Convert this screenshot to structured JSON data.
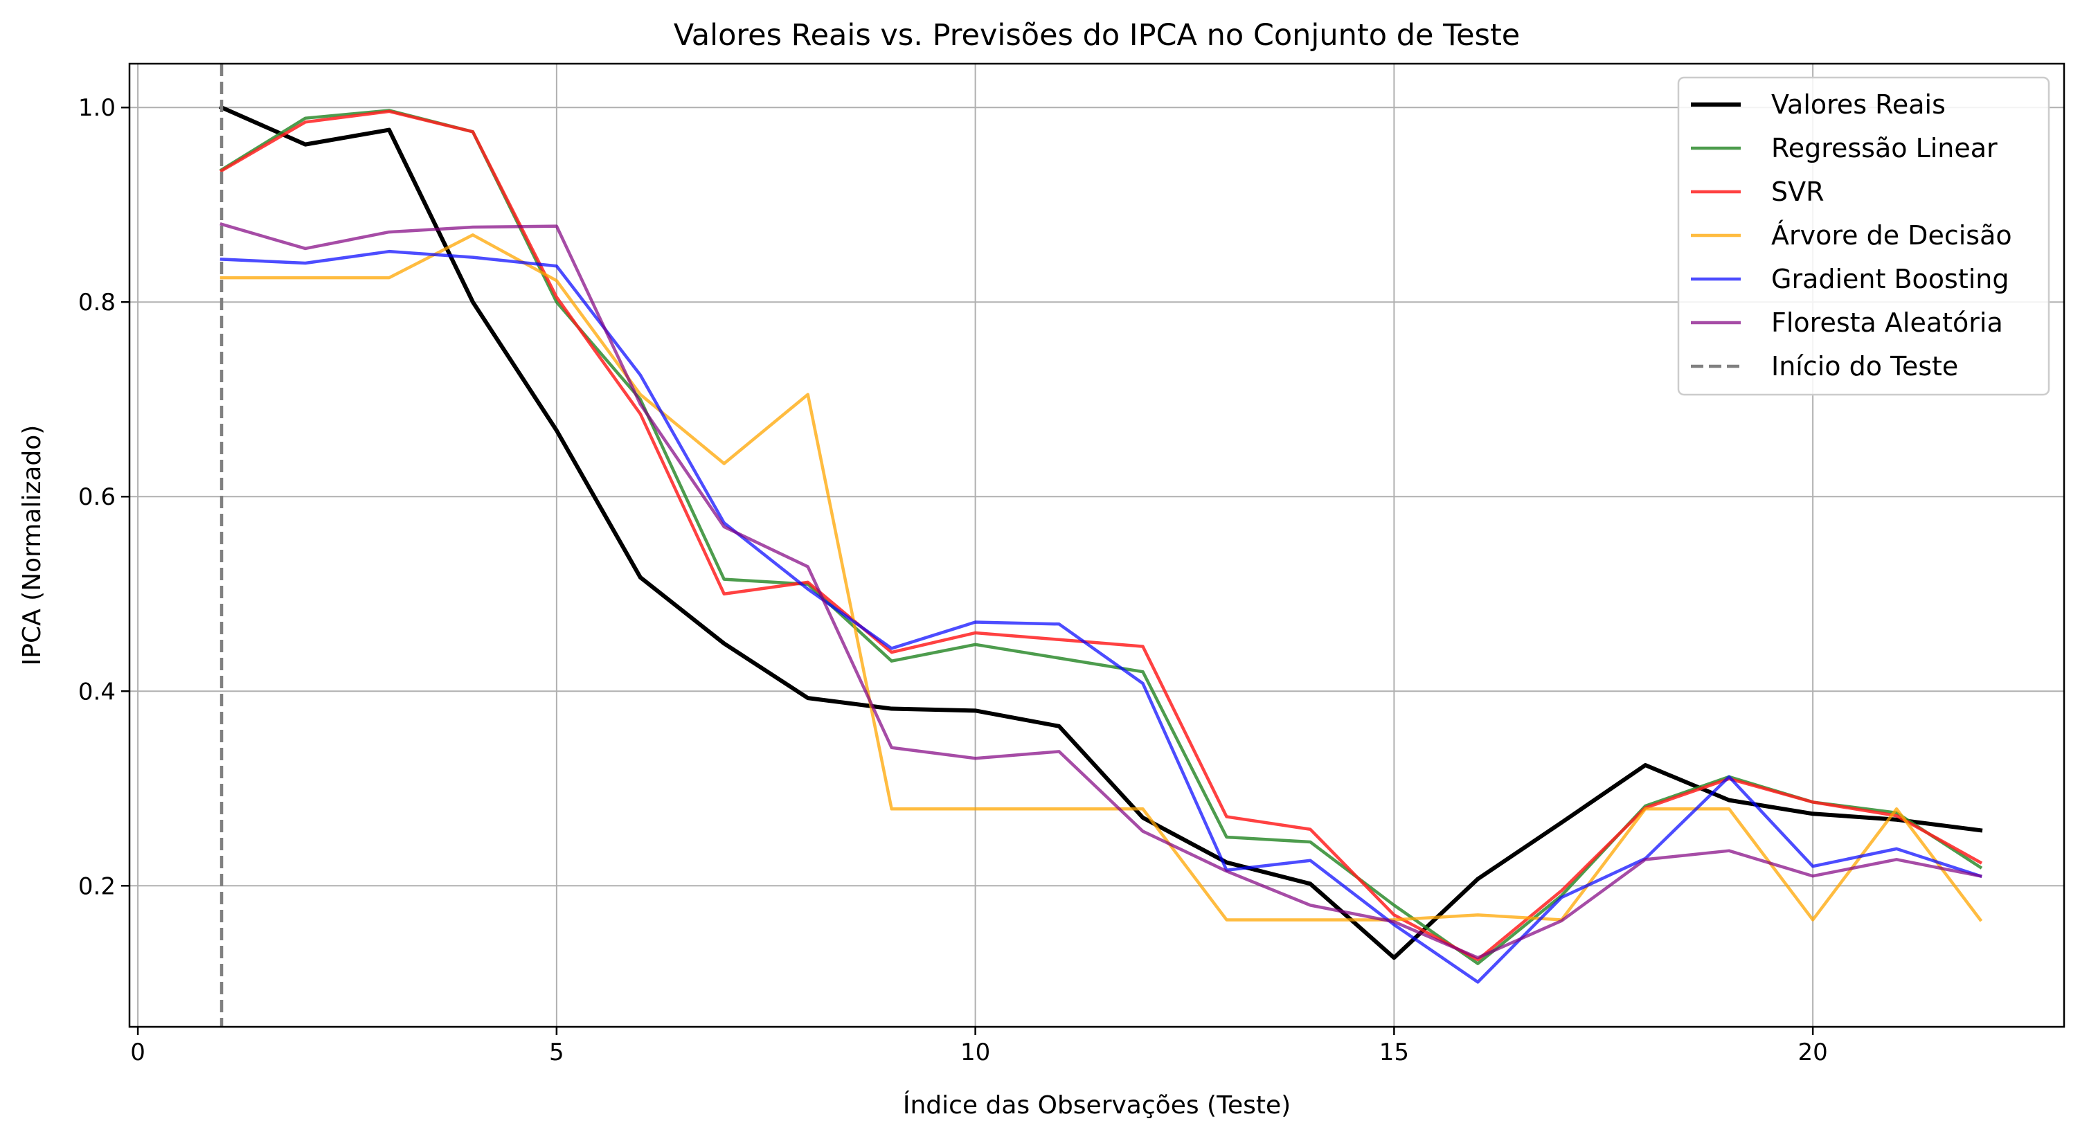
{
  "chart_data": {
    "type": "line",
    "title": "Valores Reais vs. Previsões do IPCA no Conjunto de Teste",
    "xlabel": "Índice das Observações (Teste)",
    "ylabel": "IPCA (Normalizado)",
    "xlim": [
      -0.1,
      23.0
    ],
    "ylim": [
      0.055,
      1.045
    ],
    "xticks": [
      0,
      5,
      10,
      15,
      20
    ],
    "yticks": [
      0.2,
      0.4,
      0.6,
      0.8,
      1.0
    ],
    "grid": true,
    "legend_position": "top-right",
    "x": [
      1,
      2,
      3,
      4,
      5,
      6,
      7,
      8,
      9,
      10,
      11,
      12,
      13,
      14,
      15,
      16,
      17,
      18,
      19,
      20,
      21,
      22
    ],
    "series": [
      {
        "name": "Valores Reais",
        "color": "#000000",
        "width": 6,
        "opacity": 1,
        "dash": "",
        "values": [
          1.0,
          0.962,
          0.977,
          0.8,
          0.668,
          0.517,
          0.449,
          0.393,
          0.382,
          0.38,
          0.364,
          0.27,
          0.224,
          0.202,
          0.126,
          0.207,
          0.265,
          0.324,
          0.288,
          0.274,
          0.268,
          0.257
        ]
      },
      {
        "name": "Regressão Linear",
        "color": "#2e8b2e",
        "width": 4.5,
        "opacity": 0.85,
        "dash": "",
        "values": [
          0.936,
          0.989,
          0.997,
          0.975,
          0.8,
          0.7,
          0.515,
          0.51,
          0.431,
          0.448,
          0.434,
          0.42,
          0.25,
          0.245,
          0.18,
          0.12,
          0.19,
          0.282,
          0.312,
          0.286,
          0.275,
          0.219
        ]
      },
      {
        "name": "SVR",
        "color": "#ff2020",
        "width": 4.5,
        "opacity": 0.85,
        "dash": "",
        "values": [
          0.935,
          0.985,
          0.996,
          0.975,
          0.805,
          0.685,
          0.5,
          0.512,
          0.44,
          0.46,
          0.453,
          0.446,
          0.271,
          0.258,
          0.17,
          0.124,
          0.195,
          0.28,
          0.31,
          0.286,
          0.272,
          0.224
        ]
      },
      {
        "name": "Árvore de Decisão",
        "color": "#ffa500",
        "width": 4.5,
        "opacity": 0.75,
        "dash": "",
        "values": [
          0.825,
          0.825,
          0.825,
          0.869,
          0.822,
          0.705,
          0.634,
          0.705,
          0.279,
          0.279,
          0.279,
          0.279,
          0.165,
          0.165,
          0.165,
          0.17,
          0.165,
          0.279,
          0.279,
          0.165,
          0.279,
          0.165
        ]
      },
      {
        "name": "Gradient Boosting",
        "color": "#0000ff",
        "width": 4.5,
        "opacity": 0.7,
        "dash": "",
        "values": [
          0.844,
          0.84,
          0.852,
          0.846,
          0.837,
          0.725,
          0.573,
          0.505,
          0.444,
          0.471,
          0.469,
          0.408,
          0.216,
          0.226,
          0.16,
          0.101,
          0.188,
          0.228,
          0.312,
          0.22,
          0.238,
          0.21
        ]
      },
      {
        "name": "Floresta Aleatória",
        "color": "#800080",
        "width": 4.5,
        "opacity": 0.7,
        "dash": "",
        "values": [
          0.88,
          0.855,
          0.872,
          0.877,
          0.878,
          0.695,
          0.569,
          0.528,
          0.342,
          0.331,
          0.338,
          0.256,
          0.215,
          0.18,
          0.163,
          0.126,
          0.164,
          0.227,
          0.236,
          0.21,
          0.227,
          0.21
        ]
      }
    ],
    "vline": {
      "name": "Início do Teste",
      "x": 1,
      "color": "#808080",
      "width": 4.5,
      "dash": "18,8"
    }
  }
}
